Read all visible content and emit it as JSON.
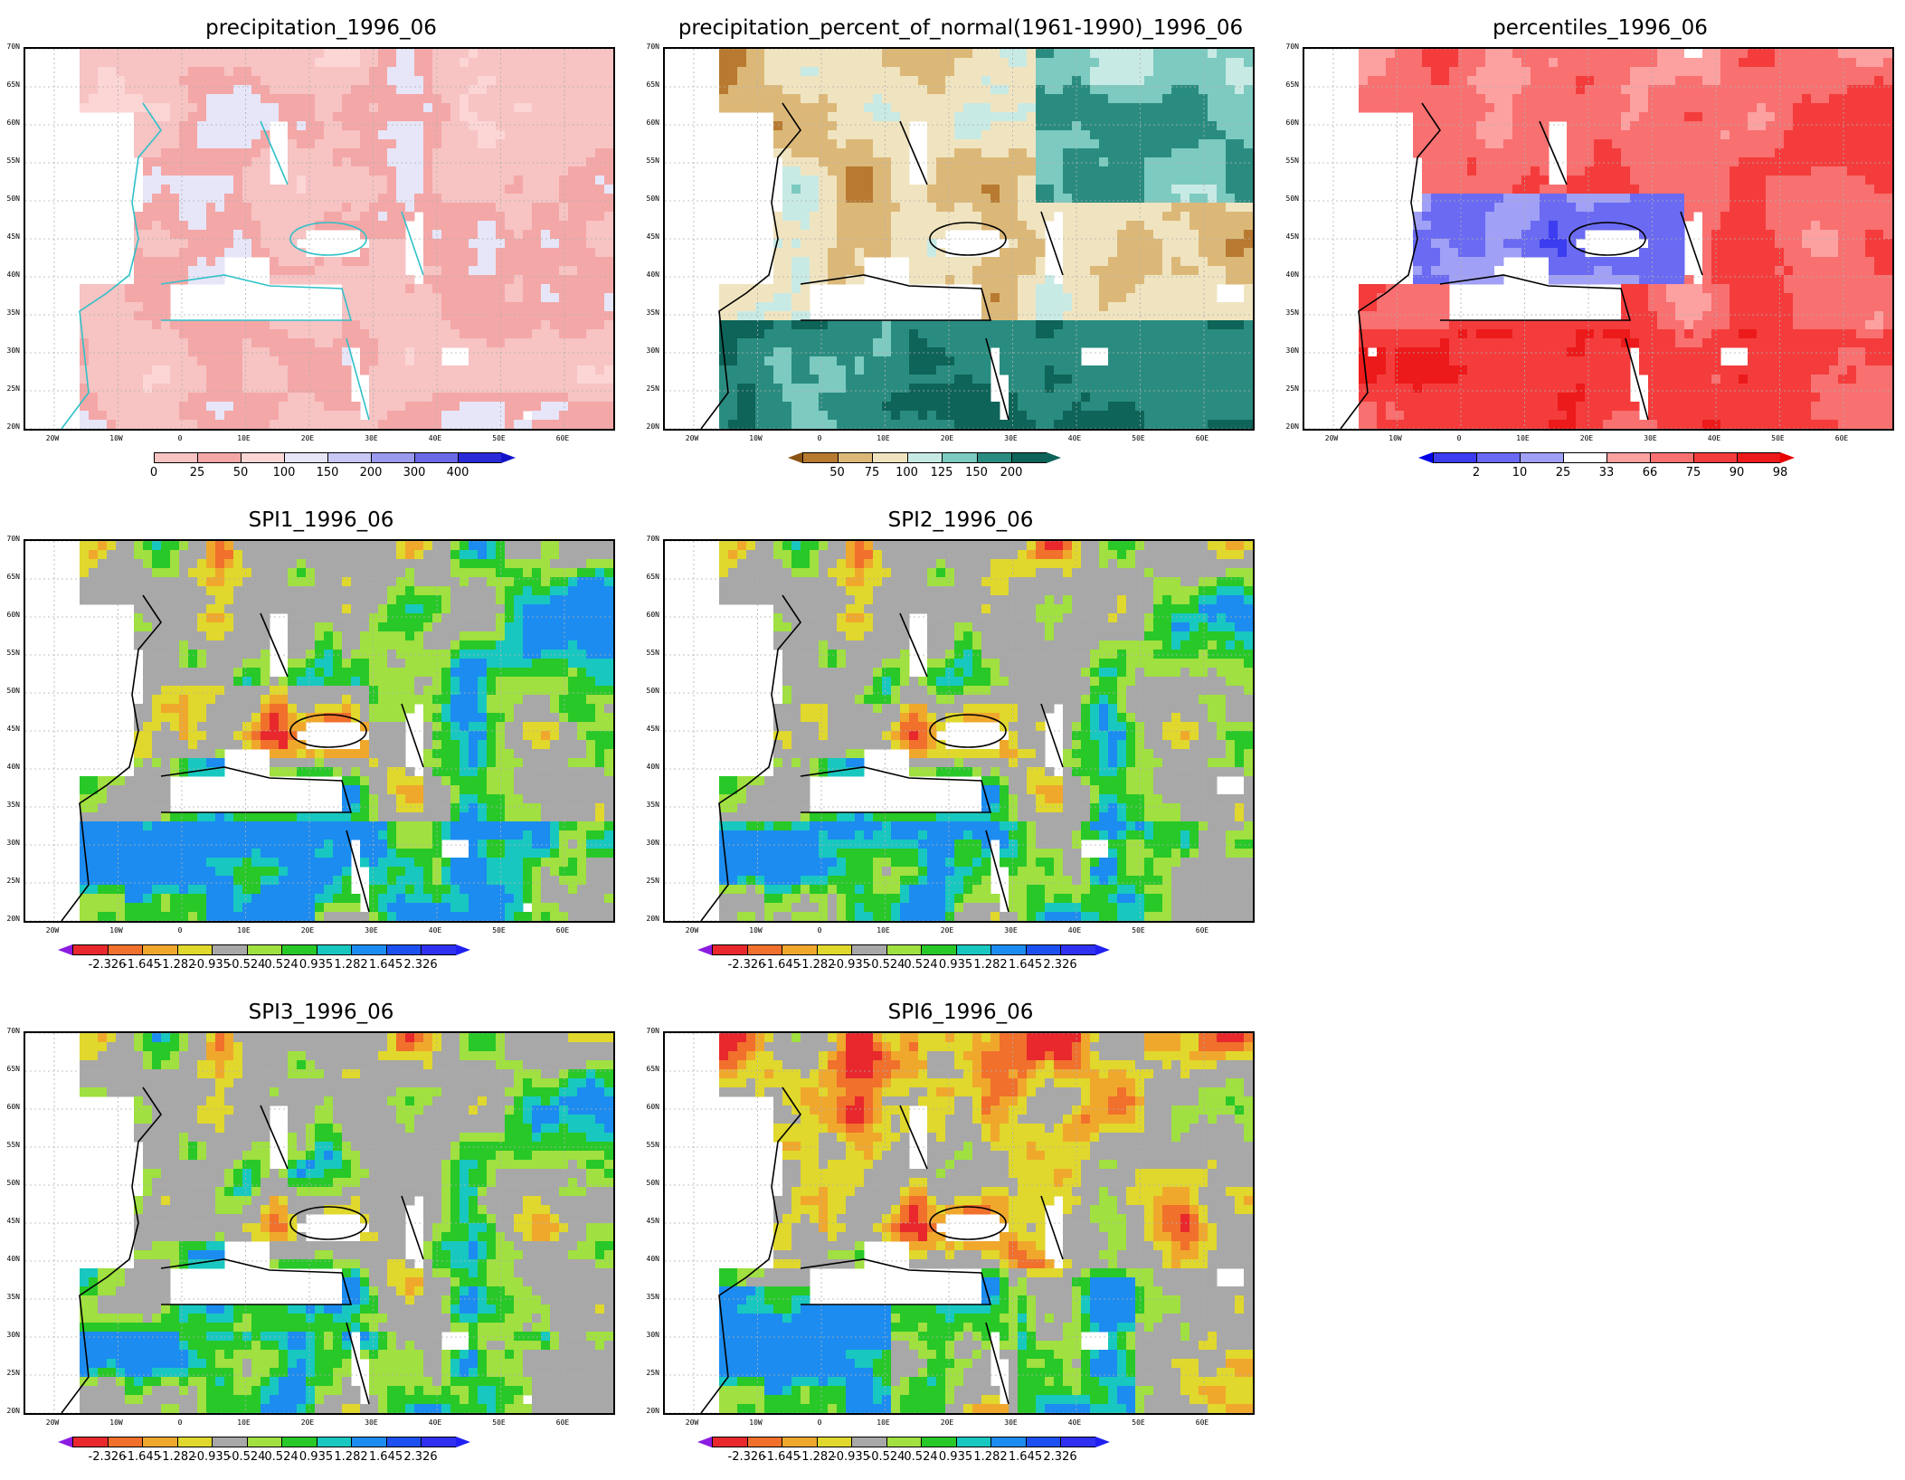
{
  "panels": [
    {
      "id": "p1",
      "title": "precipitation_1996_06",
      "scheme": "precip",
      "colorbar": "precip"
    },
    {
      "id": "p2",
      "title": "precipitation_percent_of_normal(1961-1990)_1996_06",
      "scheme": "pct",
      "colorbar": "pct"
    },
    {
      "id": "p3",
      "title": "percentiles_1996_06",
      "scheme": "perc",
      "colorbar": "perc"
    },
    {
      "id": "p4",
      "title": "SPI1_1996_06",
      "scheme": "spi1",
      "colorbar": "spi"
    },
    {
      "id": "p5",
      "title": "SPI2_1996_06",
      "scheme": "spi2",
      "colorbar": "spi"
    },
    {
      "id": "p6",
      "title": "SPI3_1996_06",
      "scheme": "spi3",
      "colorbar": "spi"
    },
    {
      "id": "p7",
      "title": "SPI6_1996_06",
      "scheme": "spi6",
      "colorbar": "spi"
    }
  ],
  "lat_labels": [
    "70N",
    "65N",
    "60N",
    "55N",
    "50N",
    "45N",
    "40N",
    "35N",
    "30N",
    "25N",
    "20N"
  ],
  "lon_labels": [
    "20W",
    "10W",
    "0",
    "10E",
    "20E",
    "30E",
    "40E",
    "50E",
    "60E"
  ],
  "colorbars": {
    "precip": {
      "labels": [
        "0",
        "25",
        "50",
        "100",
        "150",
        "200",
        "300",
        "400"
      ],
      "colors": [
        "#f7c3c3",
        "#f4a7a7",
        "#fcd5d5",
        "#e6e6f8",
        "#c8c8f4",
        "#9a9aee",
        "#6a6ae6",
        "#2a2ad8"
      ],
      "left_arrow": "#ffffff",
      "right_arrow": "#1414c8"
    },
    "pct": {
      "labels": [
        "50",
        "75",
        "100",
        "125",
        "150",
        "200"
      ],
      "colors": [
        "#b87a30",
        "#dcb878",
        "#f0e4c0",
        "#c8eae4",
        "#7ccac0",
        "#2a8c80",
        "#0e6458"
      ],
      "left_arrow": "#8c5414",
      "right_arrow": "#0e6458"
    },
    "perc": {
      "labels": [
        "2",
        "10",
        "25",
        "33",
        "66",
        "75",
        "90",
        "98"
      ],
      "colors": [
        "#3c3cf0",
        "#6a6af2",
        "#a0a0f6",
        "#ffffff",
        "#fca0a0",
        "#f87070",
        "#f43c3c",
        "#ec1a1a"
      ],
      "left_arrow": "#0000e6",
      "right_arrow": "#e60000"
    },
    "spi": {
      "labels": [
        "-2.326",
        "-1.645",
        "-1.282",
        "-0.935",
        "-0.524",
        "0.524",
        "0.935",
        "1.282",
        "1.645",
        "2.326"
      ],
      "colors": [
        "#e8282c",
        "#f0702c",
        "#f0a82c",
        "#e0d82c",
        "#a8a8a8",
        "#a0e040",
        "#28c828",
        "#18c8c0",
        "#1c8cf0",
        "#1c50f0",
        "#3030f0"
      ],
      "left_arrow": "#8c1ce0",
      "right_arrow": "#2020f0"
    }
  }
}
